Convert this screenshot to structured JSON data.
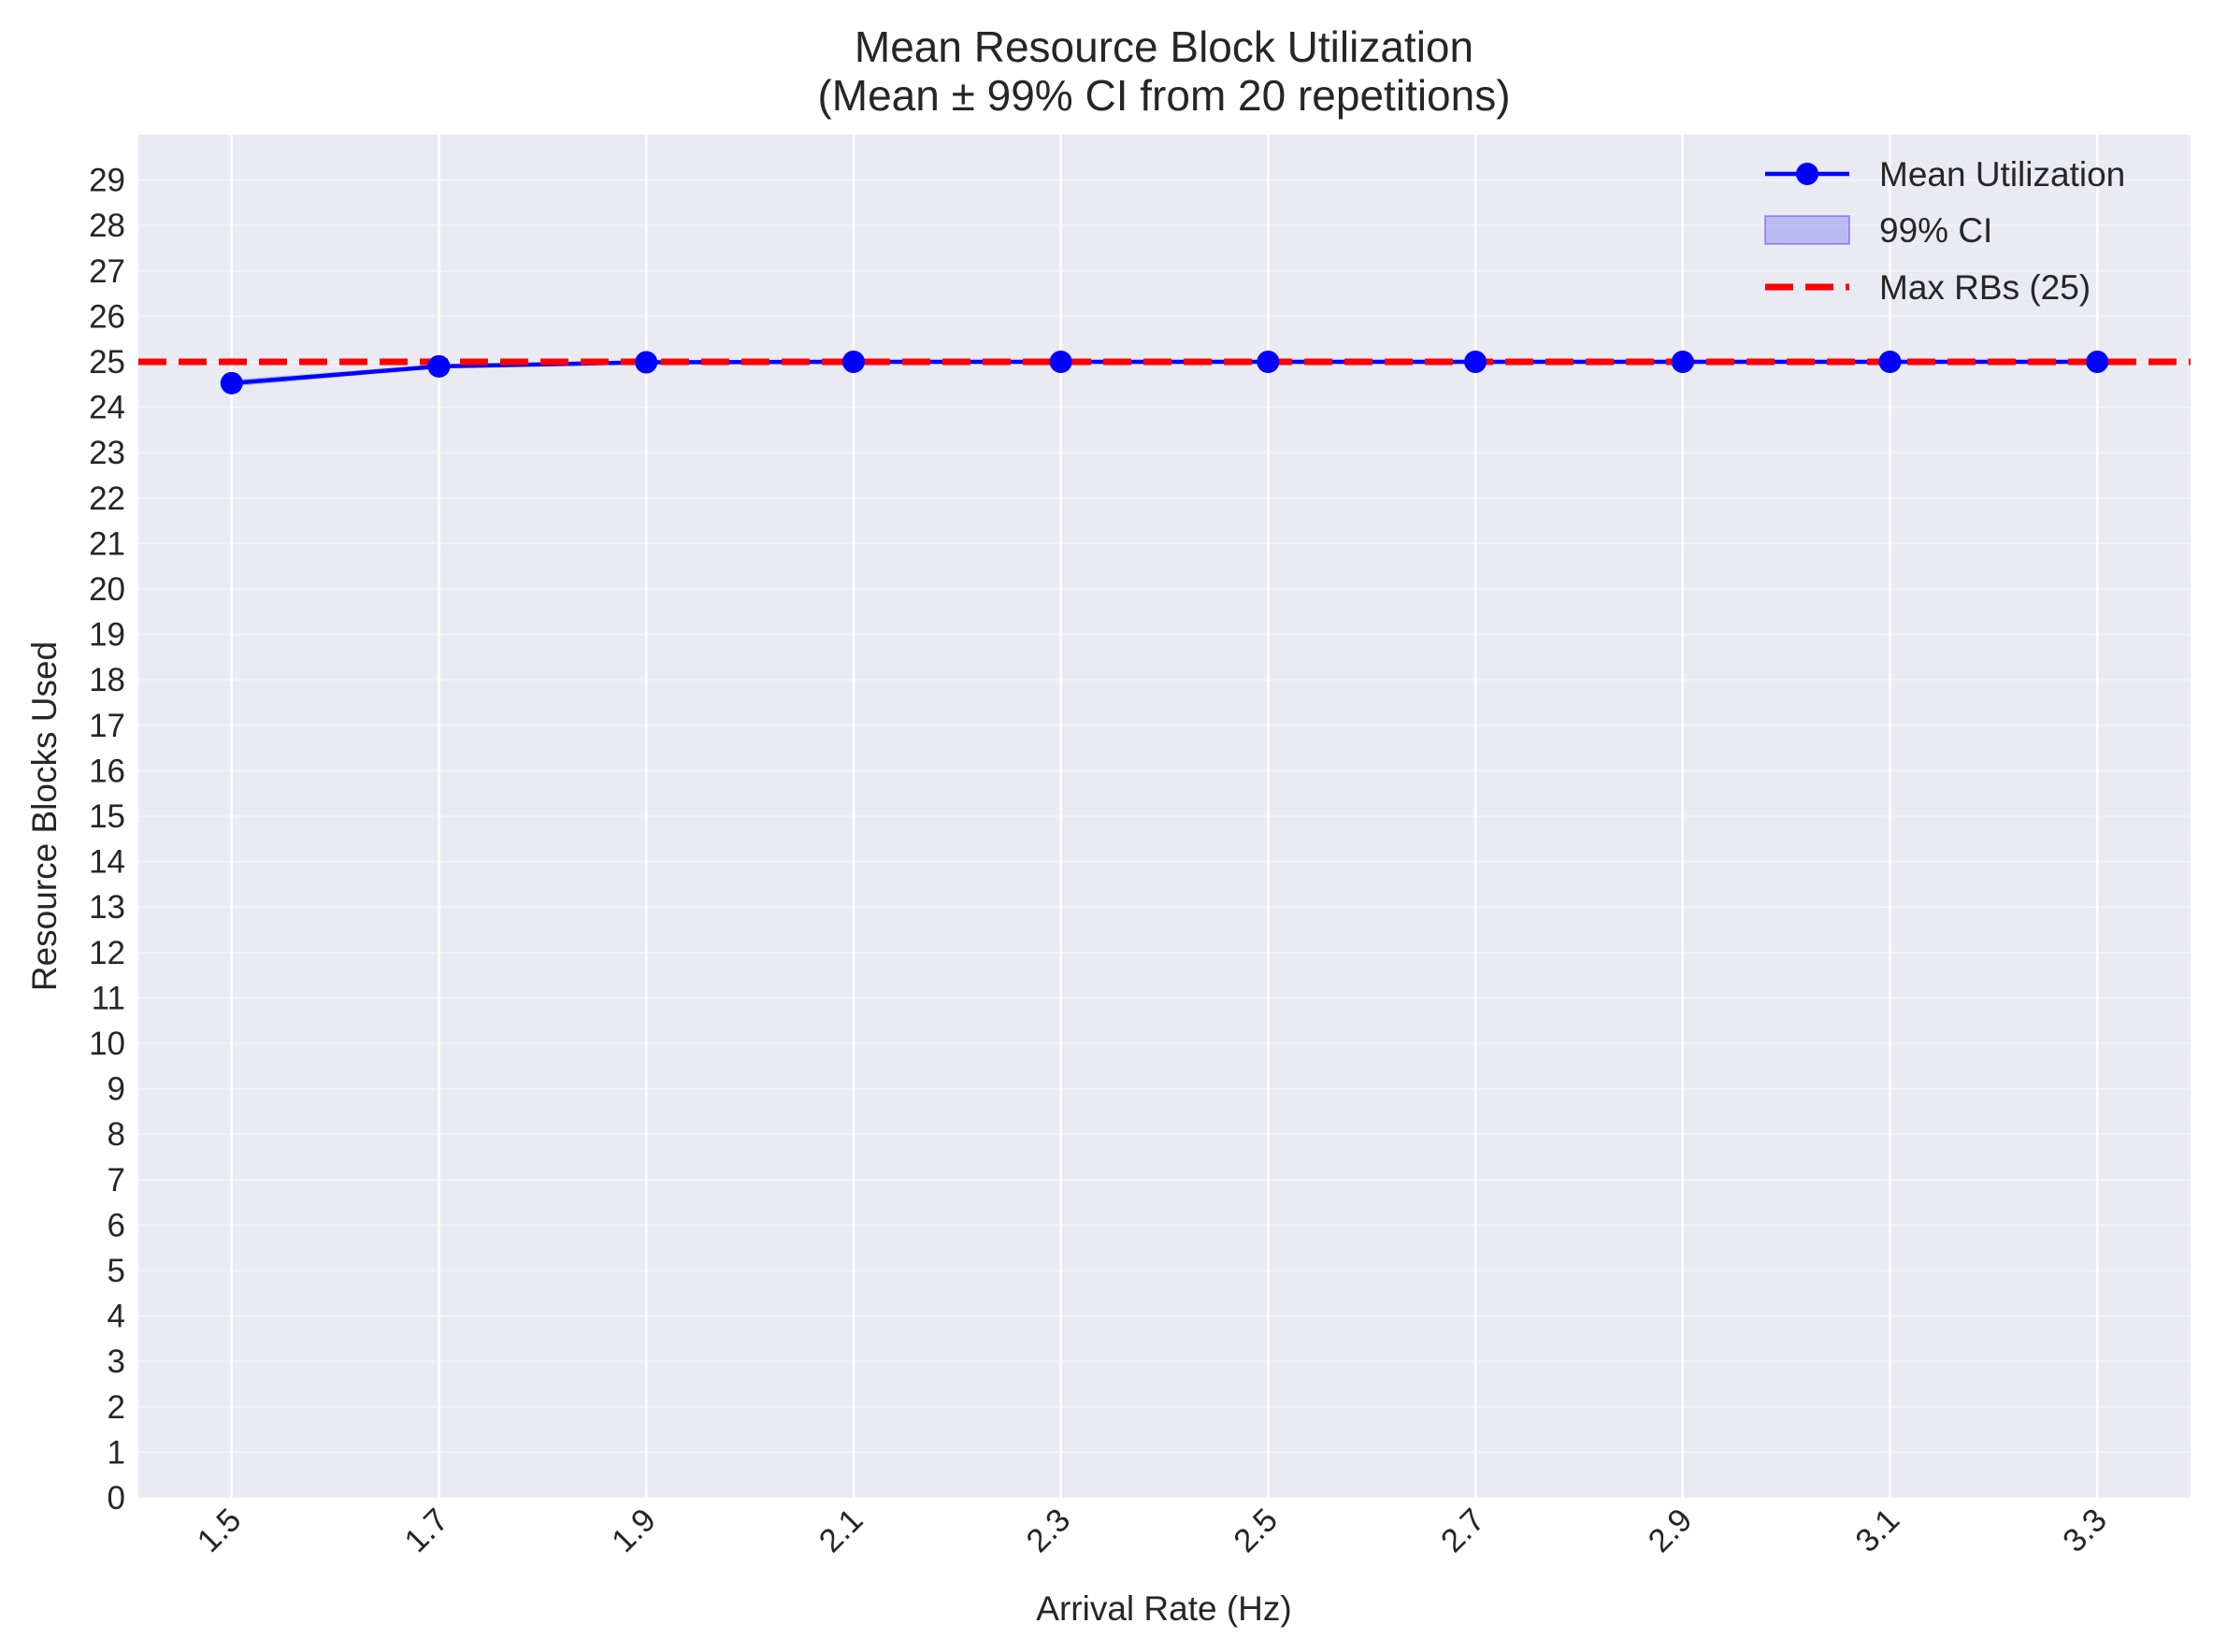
{
  "chart_data": {
    "type": "line",
    "title": "Mean Resource Block Utilization",
    "subtitle": "(Mean ± 99% CI from 20 repetitions)",
    "xlabel": "Arrival Rate (Hz)",
    "ylabel": "Resource Blocks Used",
    "x_tick_labels": [
      "1.5",
      "1.7",
      "1.9",
      "2.1",
      "2.3",
      "2.5",
      "2.7",
      "2.9",
      "3.1",
      "3.3"
    ],
    "x": [
      1.5,
      1.7,
      1.9,
      2.1,
      2.3,
      2.5,
      2.7,
      2.9,
      3.1,
      3.3
    ],
    "xlim": [
      1.41,
      3.39
    ],
    "ylim": [
      0,
      30
    ],
    "y_ticks": [
      0,
      1,
      2,
      3,
      4,
      5,
      6,
      7,
      8,
      9,
      10,
      11,
      12,
      13,
      14,
      15,
      16,
      17,
      18,
      19,
      20,
      21,
      22,
      23,
      24,
      25,
      26,
      27,
      28,
      29
    ],
    "grid": true,
    "legend_position": "top-right",
    "series": [
      {
        "name": "Mean Utilization",
        "values": [
          24.53,
          24.9,
          24.99,
          25.0,
          25.0,
          25.0,
          25.0,
          25.0,
          25.0,
          25.0
        ],
        "color": "#0000ff",
        "marker": "circle"
      },
      {
        "name": "99% CI",
        "lower": [
          24.45,
          24.86,
          24.98,
          25.0,
          25.0,
          25.0,
          25.0,
          25.0,
          25.0,
          25.0
        ],
        "upper": [
          24.61,
          24.94,
          25.0,
          25.0,
          25.0,
          25.0,
          25.0,
          25.0,
          25.0,
          25.0
        ],
        "color": "#0000ff",
        "style": "band"
      },
      {
        "name": "Max RBs (25)",
        "y": 25,
        "color": "#ff0000",
        "style": "dashed-hline"
      }
    ],
    "colors": {
      "plot_background": "#eaeaf2",
      "grid": "#ffffff",
      "text": "#262626"
    }
  }
}
